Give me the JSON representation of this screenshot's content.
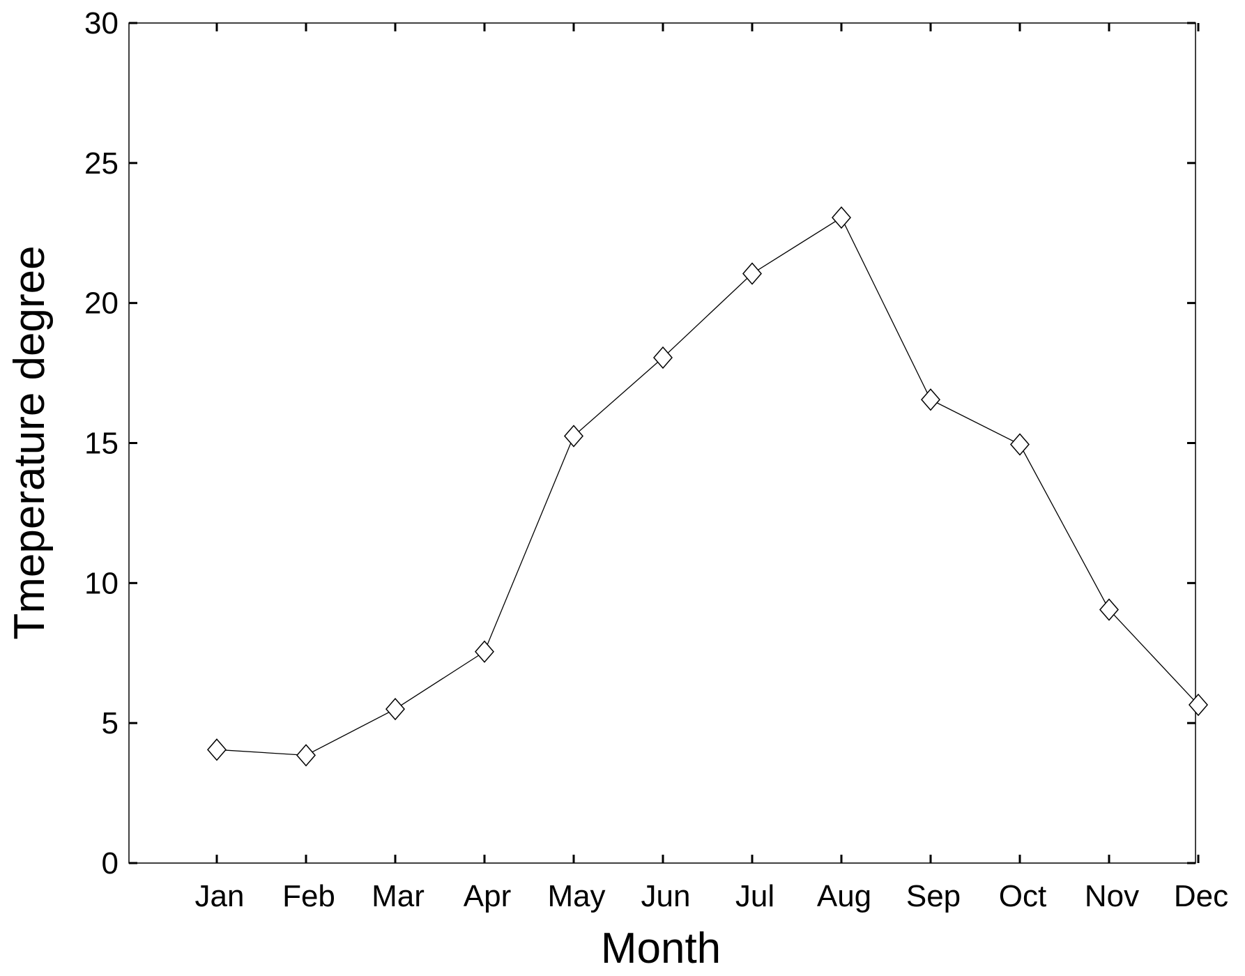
{
  "chart_data": {
    "type": "line",
    "categories": [
      "Jan",
      "Feb",
      "Mar",
      "Apr",
      "May",
      "Jun",
      "Jul",
      "Aug",
      "Sep",
      "Oct",
      "Nov",
      "Dec"
    ],
    "series": [
      {
        "values": [
          4.05,
          3.85,
          5.5,
          7.55,
          15.25,
          18.05,
          21.05,
          23.05,
          16.55,
          14.95,
          9.05,
          5.65
        ],
        "color": "#000000",
        "marker": "diamond-icon"
      }
    ],
    "yticks": [
      0,
      5,
      10,
      15,
      20,
      25,
      30
    ],
    "ylim": [
      0,
      30
    ],
    "xlabel": "Month",
    "ylabel": "Tmeperature degree",
    "grid": false,
    "legend": "none"
  }
}
